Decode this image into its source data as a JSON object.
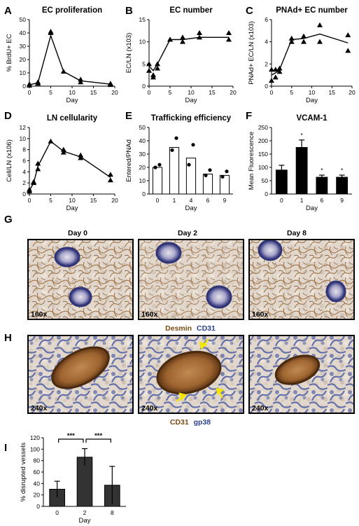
{
  "panels": [
    {
      "id": "A",
      "letter": "A"
    },
    {
      "id": "B",
      "letter": "B"
    },
    {
      "id": "C",
      "letter": "C"
    },
    {
      "id": "D",
      "letter": "D"
    },
    {
      "id": "E",
      "letter": "E"
    },
    {
      "id": "F",
      "letter": "F"
    },
    {
      "id": "G",
      "letter": "G"
    },
    {
      "id": "H",
      "letter": "H"
    },
    {
      "id": "I",
      "letter": "I"
    }
  ],
  "chart_data": [
    {
      "id": "A",
      "type": "line",
      "title": "EC proliferation",
      "xlabel": "Day",
      "ylabel": "% BrdU+ EC",
      "xlim": [
        0,
        20
      ],
      "ylim": [
        0,
        50
      ],
      "xticks": [
        0,
        5,
        10,
        15,
        20
      ],
      "yticks": [
        0,
        10,
        20,
        30,
        40,
        50
      ],
      "marker": "triangle",
      "points": {
        "x": [
          0,
          0,
          2,
          2,
          5,
          5,
          8,
          12,
          12,
          19,
          19
        ],
        "y": [
          0.5,
          1.5,
          2,
          3,
          40,
          41,
          11,
          3,
          5,
          1,
          2
        ]
      },
      "line": {
        "x": [
          0,
          2,
          5,
          8,
          12,
          19
        ],
        "y": [
          1,
          2.5,
          38,
          11,
          4,
          1.5
        ]
      }
    },
    {
      "id": "B",
      "type": "line",
      "title": "EC number",
      "xlabel": "Day",
      "ylabel": "EC/LN (x10^3)",
      "xlim": [
        0,
        20
      ],
      "ylim": [
        0,
        15
      ],
      "xticks": [
        0,
        5,
        10,
        15,
        20
      ],
      "yticks": [
        0,
        5,
        10,
        15
      ],
      "marker": "triangle",
      "points": {
        "x": [
          0,
          0,
          1,
          1,
          2,
          2,
          5,
          5,
          8,
          8,
          12,
          12,
          19,
          19
        ],
        "y": [
          5,
          3.5,
          2.5,
          2,
          5,
          4,
          10.5,
          10.5,
          11,
          10,
          12,
          11,
          12,
          10.5
        ]
      },
      "line": {
        "x": [
          0,
          1,
          2,
          5,
          8,
          12,
          19
        ],
        "y": [
          4.5,
          3.5,
          5,
          10.5,
          10.5,
          11,
          11
        ]
      }
    },
    {
      "id": "C",
      "type": "line",
      "title": "PNAd+ EC number",
      "xlabel": "Day",
      "ylabel": "PNAd+ EC/LN (x10^3)",
      "xlim": [
        0,
        20
      ],
      "ylim": [
        0,
        6
      ],
      "xticks": [
        0,
        5,
        10,
        15,
        20
      ],
      "yticks": [
        0,
        2,
        4,
        6
      ],
      "marker": "triangle",
      "points": {
        "x": [
          0,
          0,
          1,
          1,
          2,
          2,
          5,
          5,
          8,
          8,
          12,
          12,
          19,
          19
        ],
        "y": [
          1.5,
          0.5,
          1.5,
          0.8,
          1.3,
          1.6,
          4.3,
          4,
          4.5,
          4,
          5.5,
          4,
          4.6,
          3.2
        ]
      },
      "line": {
        "x": [
          0,
          1,
          2,
          5,
          8,
          12,
          19
        ],
        "y": [
          1,
          1.2,
          1.5,
          4.2,
          4.3,
          4.7,
          3.9
        ]
      }
    },
    {
      "id": "D",
      "type": "line",
      "title": "LN cellularity",
      "xlabel": "Day",
      "ylabel": "Cell/LN (x10^6)",
      "xlim": [
        0,
        20
      ],
      "ylim": [
        0,
        12
      ],
      "xticks": [
        0,
        5,
        10,
        15,
        20
      ],
      "yticks": [
        0,
        2,
        4,
        6,
        8,
        10,
        12
      ],
      "marker": "triangle",
      "points": {
        "x": [
          0,
          0,
          1,
          1,
          2,
          2,
          5,
          8,
          8,
          12,
          12,
          19,
          19
        ],
        "y": [
          0.5,
          0.8,
          2,
          2.2,
          4.5,
          5.5,
          9.5,
          8,
          7.5,
          7,
          6.5,
          3.5,
          2.5
        ]
      },
      "line": {
        "x": [
          0,
          1,
          2,
          5,
          8,
          12,
          19
        ],
        "y": [
          0.6,
          2,
          5,
          9.5,
          7.7,
          6.7,
          3
        ]
      }
    },
    {
      "id": "E",
      "type": "bar",
      "title": "Trafficking efficiency",
      "xlabel": "Day",
      "ylabel": "Entered/PNAd",
      "categories": [
        "0",
        "1",
        "4",
        "6",
        "9"
      ],
      "values": [
        20,
        35,
        27,
        15,
        14
      ],
      "dots": [
        [
          20,
          22
        ],
        [
          33,
          42
        ],
        [
          22,
          37
        ],
        [
          14,
          18
        ],
        [
          13,
          17
        ]
      ],
      "ylim": [
        0,
        50
      ],
      "yticks": [
        0,
        10,
        20,
        30,
        40,
        50
      ],
      "bar_color": "#ffffff"
    },
    {
      "id": "F",
      "type": "bar",
      "title": "VCAM-1",
      "xlabel": "Day",
      "ylabel": "Mean Fluorescence",
      "categories": [
        "0",
        "1",
        "6",
        "9"
      ],
      "values": [
        90,
        175,
        63,
        63
      ],
      "errors": [
        18,
        28,
        8,
        8
      ],
      "significance": [
        "",
        "*",
        "*",
        "*"
      ],
      "ylim": [
        0,
        250
      ],
      "yticks": [
        0,
        50,
        100,
        150,
        200,
        250
      ],
      "bar_color": "#000000"
    },
    {
      "id": "I",
      "type": "bar",
      "title": "",
      "xlabel": "Day",
      "ylabel": "% disrupted vessels",
      "categories": [
        "0",
        "2",
        "8"
      ],
      "values": [
        30,
        86,
        37
      ],
      "errors": [
        14,
        15,
        33
      ],
      "ylim": [
        0,
        120
      ],
      "yticks": [
        0,
        20,
        40,
        60,
        80,
        100,
        120
      ],
      "bar_color": "#333333",
      "brackets": [
        {
          "from": 0,
          "to": 1,
          "label": "***"
        },
        {
          "from": 1,
          "to": 2,
          "label": "***"
        }
      ]
    }
  ],
  "micrographs": {
    "G": {
      "days": [
        "Day 0",
        "Day 2",
        "Day 8"
      ],
      "magnification": [
        "160x",
        "160x",
        "160x"
      ],
      "stain_label_1": "Desmin",
      "stain_color_1": "#7a4a12",
      "stain_label_2": "CD31",
      "stain_color_2": "#2a3f8f"
    },
    "H": {
      "magnification": [
        "240x",
        "240x",
        "240x"
      ],
      "stain_label_1": "CD31",
      "stain_color_1": "#7a4a12",
      "stain_label_2": "gp38",
      "stain_color_2": "#2a3f8f",
      "arrow_color": "#f2e600"
    }
  }
}
